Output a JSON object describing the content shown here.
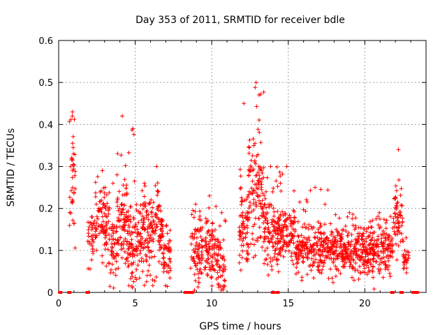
{
  "chart_data": {
    "type": "scatter",
    "title": "Day 353 of 2011, SRMTID for receiver bdle",
    "xlabel": "GPS time / hours",
    "ylabel": "SRMTID / TECUs",
    "xlim": [
      0,
      24
    ],
    "ylim": [
      0,
      0.6
    ],
    "x_ticks": [
      0,
      5,
      10,
      15,
      20
    ],
    "y_ticks": [
      0,
      0.1,
      0.2,
      0.3,
      0.4,
      0.5,
      0.6
    ],
    "x_tick_labels": [
      "0",
      "5",
      "10",
      "15",
      "20"
    ],
    "y_tick_labels": [
      "0",
      "0.1",
      "0.2",
      "0.3",
      "0.4",
      "0.5",
      "0.6"
    ],
    "grid": true,
    "marker": "+",
    "color": "#ff0000",
    "zero_points": [
      0.1,
      0.7,
      1.9,
      8.3,
      8.5,
      8.7,
      14.0,
      14.3,
      21.8,
      22.4,
      23.2,
      23.4
    ],
    "clusters": [
      {
        "x_range": [
          0.7,
          1.1
        ],
        "y_center": 0.27,
        "y_spread": 0.15,
        "y_peak": 0.43,
        "count": 40
      },
      {
        "x_range": [
          1.9,
          2.4
        ],
        "y_center": 0.12,
        "y_spread": 0.07,
        "y_peak": 0.18,
        "count": 35
      },
      {
        "x_range": [
          2.4,
          3.3
        ],
        "y_center": 0.17,
        "y_spread": 0.08,
        "y_peak": 0.29,
        "count": 90
      },
      {
        "x_range": [
          3.3,
          3.8
        ],
        "y_center": 0.09,
        "y_spread": 0.08,
        "y_peak": 0.26,
        "count": 45
      },
      {
        "x_range": [
          3.8,
          4.5
        ],
        "y_center": 0.17,
        "y_spread": 0.1,
        "y_peak": 0.42,
        "count": 85
      },
      {
        "x_range": [
          4.5,
          5.2
        ],
        "y_center": 0.12,
        "y_spread": 0.09,
        "y_peak": 0.39,
        "count": 85
      },
      {
        "x_range": [
          5.2,
          6.0
        ],
        "y_center": 0.13,
        "y_spread": 0.1,
        "y_peak": 0.26,
        "count": 90
      },
      {
        "x_range": [
          6.0,
          6.8
        ],
        "y_center": 0.14,
        "y_spread": 0.1,
        "y_peak": 0.3,
        "count": 90
      },
      {
        "x_range": [
          6.8,
          7.3
        ],
        "y_center": 0.07,
        "y_spread": 0.06,
        "y_peak": 0.16,
        "count": 45
      },
      {
        "x_range": [
          8.6,
          9.3
        ],
        "y_center": 0.09,
        "y_spread": 0.08,
        "y_peak": 0.21,
        "count": 70
      },
      {
        "x_range": [
          9.3,
          10.4
        ],
        "y_center": 0.1,
        "y_spread": 0.08,
        "y_peak": 0.23,
        "count": 110
      },
      {
        "x_range": [
          10.4,
          10.9
        ],
        "y_center": 0.07,
        "y_spread": 0.07,
        "y_peak": 0.19,
        "count": 45
      },
      {
        "x_range": [
          11.8,
          12.4
        ],
        "y_center": 0.15,
        "y_spread": 0.1,
        "y_peak": 0.45,
        "count": 70
      },
      {
        "x_range": [
          12.4,
          13.4
        ],
        "y_center": 0.25,
        "y_spread": 0.12,
        "y_peak": 0.5,
        "count": 120
      },
      {
        "x_range": [
          13.4,
          14.3
        ],
        "y_center": 0.14,
        "y_spread": 0.08,
        "y_peak": 0.3,
        "count": 100
      },
      {
        "x_range": [
          14.3,
          15.5
        ],
        "y_center": 0.14,
        "y_spread": 0.06,
        "y_peak": 0.3,
        "count": 130
      },
      {
        "x_range": [
          15.5,
          18.0
        ],
        "y_center": 0.1,
        "y_spread": 0.05,
        "y_peak": 0.25,
        "count": 250
      },
      {
        "x_range": [
          18.0,
          20.0
        ],
        "y_center": 0.1,
        "y_spread": 0.05,
        "y_peak": 0.19,
        "count": 220
      },
      {
        "x_range": [
          20.0,
          21.9
        ],
        "y_center": 0.1,
        "y_spread": 0.05,
        "y_peak": 0.19,
        "count": 200
      },
      {
        "x_range": [
          21.9,
          22.5
        ],
        "y_center": 0.17,
        "y_spread": 0.08,
        "y_peak": 0.34,
        "count": 55
      },
      {
        "x_range": [
          22.5,
          22.9
        ],
        "y_center": 0.08,
        "y_spread": 0.04,
        "y_peak": 0.13,
        "count": 25
      }
    ]
  }
}
